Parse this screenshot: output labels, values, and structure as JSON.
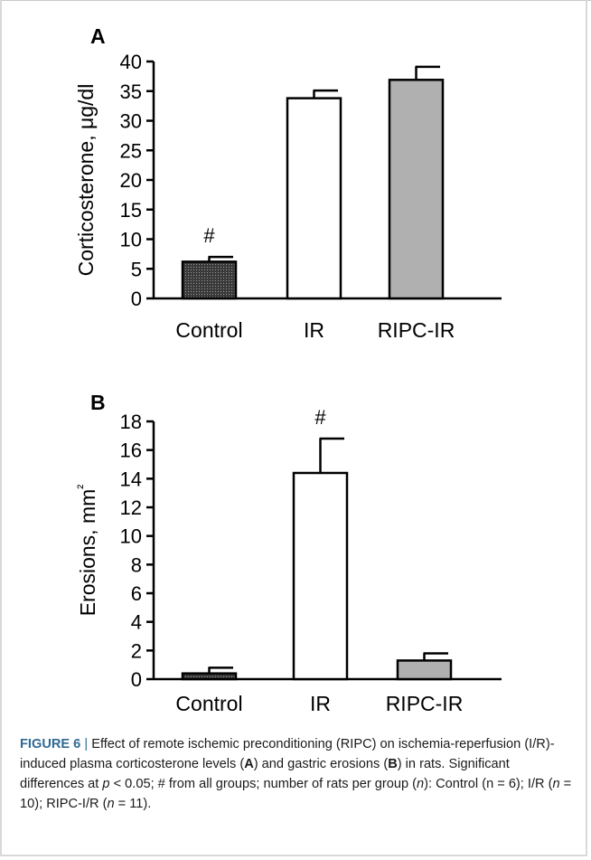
{
  "chart_data": [
    {
      "type": "bar",
      "panel": "A",
      "ylabel": "Corticosterone, μg/dl",
      "ylim": [
        0,
        40
      ],
      "yticks": [
        0,
        5,
        10,
        15,
        20,
        25,
        30,
        35,
        40
      ],
      "categories": [
        "Control",
        "IR",
        "RIPC-IR"
      ],
      "values": [
        6.2,
        33.8,
        36.9
      ],
      "errors": [
        0.8,
        1.3,
        2.2
      ],
      "fills": [
        "#555555",
        "#ffffff",
        "#b0b0b0"
      ],
      "annotations": [
        {
          "category": "Control",
          "text": "#"
        }
      ]
    },
    {
      "type": "bar",
      "panel": "B",
      "ylabel": "Erosions, mm²",
      "ylim": [
        0,
        18
      ],
      "yticks": [
        0,
        2,
        4,
        6,
        8,
        10,
        12,
        14,
        16,
        18
      ],
      "categories": [
        "Control",
        "IR",
        "RIPC-IR"
      ],
      "values": [
        0.4,
        14.4,
        1.3
      ],
      "errors": [
        0.4,
        2.4,
        0.5
      ],
      "fills": [
        "#555555",
        "#ffffff",
        "#b0b0b0"
      ],
      "annotations": [
        {
          "category": "IR",
          "text": "#"
        }
      ]
    }
  ],
  "caption": {
    "label": "FIGURE 6",
    "separator": "|",
    "part1": " Effect of remote ischemic preconditioning (RIPC) on ischemia-reperfusion (I/R)-induced plasma corticosterone levels (",
    "boldA": "A",
    "part2": ") and gastric erosions (",
    "boldB": "B",
    "part3": ") in rats. Significant differences at ",
    "p": "p",
    "part4": " < 0.05; # from all groups; number of rats per group (",
    "n1": "n",
    "part5": "): Control (n = 6); I/R (",
    "n2": "n",
    "part6": " = 10); RIPC-I/R (",
    "n3": "n",
    "part7": " = 11)."
  }
}
